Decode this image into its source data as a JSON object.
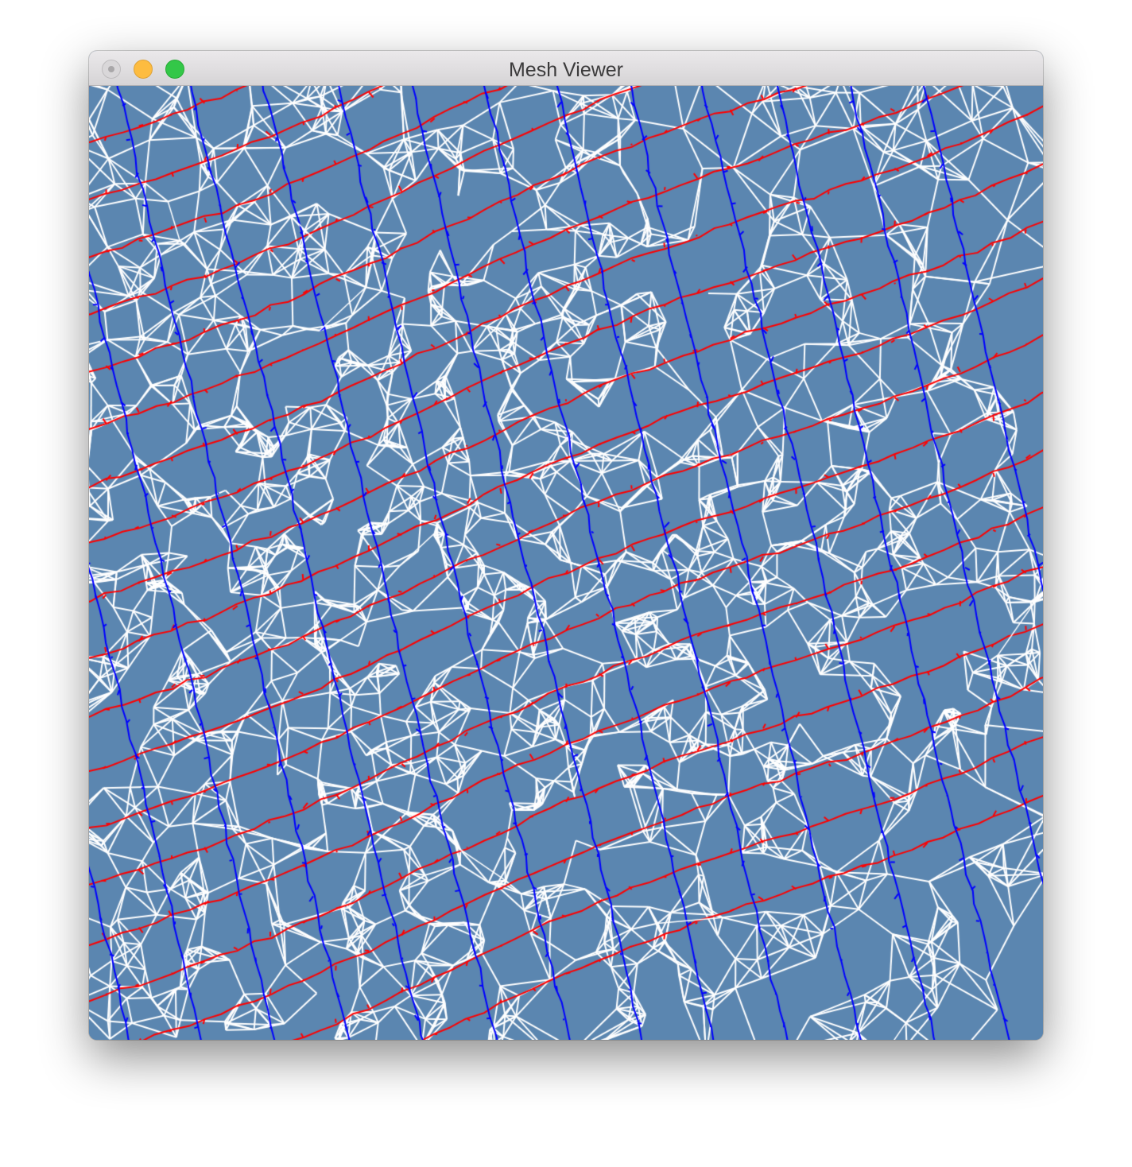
{
  "window": {
    "title": "Mesh Viewer"
  },
  "titlebar_buttons": {
    "close": "close-button",
    "minimize": "minimize-button",
    "zoom": "zoom-button"
  },
  "viewport": {
    "background_color": "#5b86b0",
    "edge_color_default": "#ffffff",
    "edge_color_red": "#ff0000",
    "edge_color_blue": "#0000ff"
  }
}
